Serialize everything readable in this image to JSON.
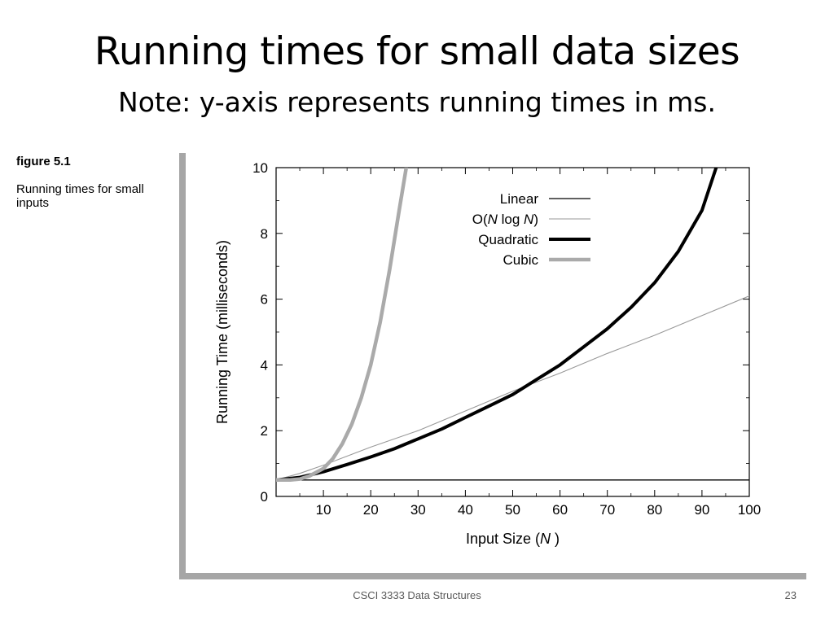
{
  "slide": {
    "title": "Running times for small data sizes",
    "subtitle": "Note: y-axis represents running times in ms.",
    "footer": "CSCI 3333 Data Structures",
    "page_number": "23"
  },
  "figure": {
    "label": "figure 5.1",
    "caption": "Running times for small inputs"
  },
  "colors": {
    "frame": "#a6a6a6",
    "linear": "#000000",
    "nlogn": "#999999",
    "quadratic": "#000000",
    "cubic": "#aaaaaa"
  },
  "chart_data": {
    "type": "line",
    "xlabel_parts": [
      "Input Size (",
      "N",
      " )"
    ],
    "ylabel": "Running Time (milliseconds)",
    "xlim": [
      0,
      100
    ],
    "ylim": [
      0,
      10
    ],
    "x_ticks": [
      10,
      20,
      30,
      40,
      50,
      60,
      70,
      80,
      90,
      100
    ],
    "y_ticks": [
      0,
      2,
      4,
      6,
      8,
      10
    ],
    "grid": false,
    "legend_position": "top-right",
    "series": [
      {
        "name": "Linear",
        "legend_parts": [
          "Linear"
        ],
        "style": "thin-black",
        "x": [
          0,
          100
        ],
        "y": [
          0.5,
          0.5
        ]
      },
      {
        "name": "O(N log N)",
        "legend_parts": [
          "O(",
          "N",
          " log ",
          "N",
          ")"
        ],
        "style": "thin-gray",
        "x": [
          0,
          5,
          10,
          20,
          30,
          40,
          50,
          60,
          70,
          80,
          90,
          100
        ],
        "y": [
          0.5,
          0.7,
          0.95,
          1.5,
          2.0,
          2.6,
          3.2,
          3.75,
          4.35,
          4.9,
          5.5,
          6.1
        ]
      },
      {
        "name": "Quadratic",
        "legend_parts": [
          "Quadratic"
        ],
        "style": "thick-black",
        "x": [
          0,
          5,
          10,
          15,
          20,
          25,
          30,
          35,
          40,
          45,
          50,
          55,
          60,
          65,
          70,
          75,
          80,
          85,
          90,
          93
        ],
        "y": [
          0.5,
          0.58,
          0.75,
          0.97,
          1.2,
          1.45,
          1.75,
          2.05,
          2.4,
          2.75,
          3.1,
          3.55,
          4.0,
          4.55,
          5.1,
          5.75,
          6.5,
          7.45,
          8.7,
          10.0
        ]
      },
      {
        "name": "Cubic",
        "legend_parts": [
          "Cubic"
        ],
        "style": "thick-gray",
        "x": [
          0,
          3,
          5,
          7,
          10,
          12,
          14,
          16,
          18,
          20,
          22,
          24,
          26,
          27.5
        ],
        "y": [
          0.5,
          0.5,
          0.53,
          0.62,
          0.85,
          1.15,
          1.6,
          2.2,
          3.0,
          4.0,
          5.3,
          6.9,
          8.7,
          10.0
        ]
      }
    ]
  }
}
